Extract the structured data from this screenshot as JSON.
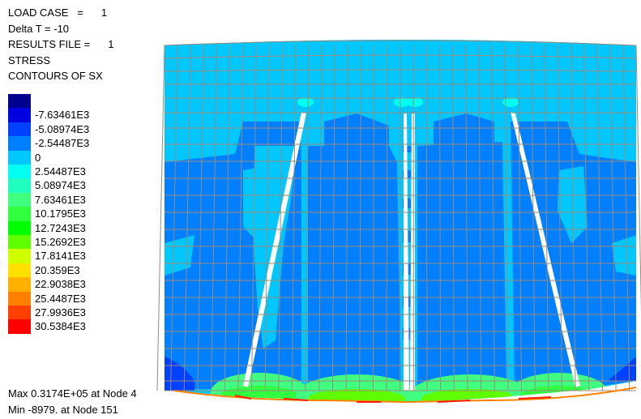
{
  "header": {
    "load_case_label": "LOAD CASE   =",
    "load_case_value": "1",
    "delta_t": "Delta T = -10",
    "results_file_label": "RESULTS FILE =",
    "results_file_value": "1",
    "result_type": "STRESS",
    "contour_title": "CONTOURS OF SX"
  },
  "legend": {
    "colors": [
      "#000090",
      "#0000e0",
      "#0040ff",
      "#0080ff",
      "#00c8ff",
      "#00fff0",
      "#20ffc0",
      "#40ff80",
      "#30ff40",
      "#00ff00",
      "#60ff00",
      "#d0ff00",
      "#ffe000",
      "#ffb000",
      "#ff8000",
      "#ff4000",
      "#ff0000"
    ],
    "labels": [
      "",
      "-7.63461E3",
      "-5.08974E3",
      "-2.54487E3",
      "0",
      "2.54487E3",
      "5.08974E3",
      "7.63461E3",
      "10.1795E3",
      "12.7243E3",
      "15.2692E3",
      "17.8141E3",
      "20.359E3",
      "22.9038E3",
      "25.4487E3",
      "27.9936E3",
      "30.5384E3"
    ]
  },
  "footer": {
    "max": "Max 0.3174E+05 at Node 4",
    "min": "Min -8979. at Node 151"
  }
}
